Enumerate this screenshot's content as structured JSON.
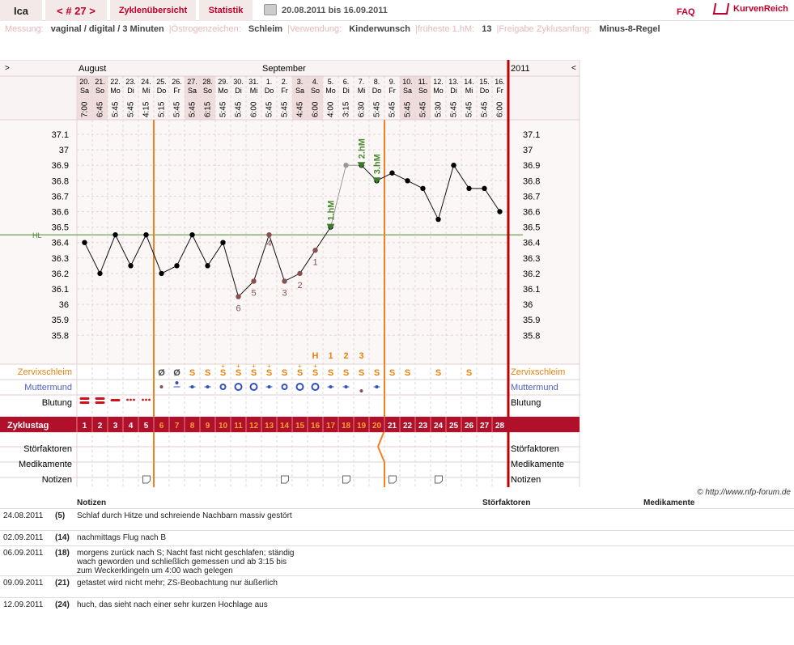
{
  "topbar": {
    "user": "Ica",
    "cycle_nav": "< # 27 >",
    "tab_overview": "Zyklenübersicht",
    "tab_stats": "Statistik",
    "date_range": "20.08.2011 bis 16.09.2011",
    "faq": "FAQ",
    "brand": "KurvenReich"
  },
  "meta": [
    {
      "k": "Messung:",
      "v": "vaginal / digital / 3 Minuten"
    },
    {
      "k": "Östrogenzeichen:",
      "v": "Schleim"
    },
    {
      "k": "Verwendung:",
      "v": "Kinderwunsch"
    },
    {
      "k": "früheste 1.hM:",
      "v": "13"
    },
    {
      "k": "Freigabe Zyklusanfang:",
      "v": "Minus-8-Regel"
    }
  ],
  "chart_data": {
    "type": "line",
    "months": {
      "m1": "August",
      "m2": "September",
      "year": "2011",
      "nav_left": ">",
      "nav_right": "<"
    },
    "dates": [
      "20.",
      "21.",
      "22.",
      "23.",
      "24.",
      "25.",
      "26.",
      "27.",
      "28.",
      "29.",
      "30.",
      "31.",
      "1.",
      "2.",
      "3.",
      "4.",
      "5.",
      "6.",
      "7.",
      "8.",
      "9.",
      "10.",
      "11.",
      "12.",
      "13.",
      "14.",
      "15.",
      "16."
    ],
    "weekdays": [
      "Sa",
      "So",
      "Mo",
      "Di",
      "Mi",
      "Do",
      "Fr",
      "Sa",
      "So",
      "Mo",
      "Di",
      "Mi",
      "Do",
      "Fr",
      "Sa",
      "So",
      "Mo",
      "Di",
      "Mi",
      "Do",
      "Fr",
      "Sa",
      "So",
      "Mo",
      "Di",
      "Mi",
      "Do",
      "Fr"
    ],
    "times": [
      "7:00",
      "6:45",
      "5:45",
      "5:45",
      "4:15",
      "5:15",
      "5:45",
      "5:45",
      "6:15",
      "5:45",
      "5:45",
      "6:00",
      "5:45",
      "5:45",
      "4:45",
      "6:00",
      "4:00",
      "3:15",
      "6:30",
      "5:45",
      "5:45",
      "5:45",
      "5:45",
      "5:30",
      "5:45",
      "5:45",
      "5:45",
      "6:00"
    ],
    "temps": [
      36.4,
      36.2,
      36.45,
      36.25,
      36.45,
      36.2,
      36.25,
      36.45,
      36.25,
      36.4,
      36.05,
      36.15,
      36.45,
      36.15,
      36.2,
      36.35,
      36.5,
      36.9,
      36.9,
      36.8,
      36.85,
      36.8,
      36.75,
      36.55,
      36.9,
      36.75,
      36.75,
      36.6
    ],
    "count_labels": [
      "",
      "",
      "",
      "",
      "",
      "",
      "",
      "",
      "",
      "",
      "6",
      "5",
      "4",
      "3",
      "2",
      "1",
      "",
      "",
      "",
      "",
      "",
      "",
      "",
      "",
      "",
      "",
      "",
      ""
    ],
    "hm_labels": [
      {
        "day": 17,
        "text": "1.hM"
      },
      {
        "day": 19,
        "text": "2.hM"
      },
      {
        "day": 20,
        "text": "3.hM"
      }
    ],
    "hl_label": "HL",
    "hl_value": 36.45,
    "yticks": [
      "37.1",
      "37",
      "36.9",
      "36.8",
      "36.7",
      "36.6",
      "36.5",
      "36.4",
      "36.3",
      "36.2",
      "36.1",
      "36",
      "35.9",
      "35.8"
    ],
    "ylim": [
      35.8,
      37.1
    ],
    "mucus_top": [
      "",
      "",
      "",
      "",
      "",
      "",
      "",
      "",
      "",
      "",
      "",
      "",
      "",
      "",
      "",
      "H",
      "1",
      "2",
      "3",
      "",
      "",
      "",
      "",
      "",
      "",
      "",
      "",
      ""
    ],
    "mucus": [
      "",
      "",
      "",
      "",
      "",
      "Ø",
      "Ø",
      "S",
      "S",
      "S+",
      "S+",
      "S+",
      "S+",
      "S",
      "S+",
      "S+",
      "S",
      "S",
      "S",
      "S",
      "S",
      "S",
      "",
      "S",
      "",
      "S",
      "",
      ""
    ],
    "cervix": [
      "",
      "",
      "",
      "",
      "",
      "small",
      "mid",
      "dot",
      "dot",
      "ring",
      "ringL",
      "ringL",
      "dot",
      "ring",
      "ringL",
      "ringL",
      "dot",
      "dot",
      "low",
      "dot",
      "",
      "",
      "",
      "",
      "",
      "",
      "",
      ""
    ],
    "bleeding": [
      "heavy",
      "heavy",
      "mid",
      "light",
      "light",
      "",
      "",
      "",
      "",
      "",
      "",
      "",
      "",
      "",
      "",
      "",
      "",
      "",
      "",
      "",
      "",
      "",
      "",
      "",
      "",
      "",
      "",
      ""
    ],
    "cycle_days": [
      "1",
      "2",
      "3",
      "4",
      "5",
      "6",
      "7",
      "8",
      "9",
      "10",
      "11",
      "12",
      "13",
      "14",
      "15",
      "16",
      "17",
      "18",
      "19",
      "20",
      "21",
      "22",
      "23",
      "24",
      "25",
      "26",
      "27",
      "28"
    ],
    "notes_marks": [
      5,
      14,
      18,
      21,
      24
    ],
    "row_labels": {
      "mucus": "Zervixschleim",
      "cervix": "Muttermund",
      "bleeding": "Blutung",
      "cycle_day": "Zyklustag",
      "stor": "Störfaktoren",
      "med": "Medikamente",
      "notes": "Notizen"
    }
  },
  "notes": {
    "headers": {
      "notes": "Notizen",
      "stor": "Störfaktoren",
      "med": "Medikamente"
    },
    "copyright": "© http://www.nfp-forum.de",
    "rows": [
      {
        "date": "24.08.2011",
        "day": "(5)",
        "text": "Schlaf durch Hitze und schreiende Nachbarn massiv gestört"
      },
      {
        "date": "02.09.2011",
        "day": "(14)",
        "text": "nachmittags Flug nach B"
      },
      {
        "date": "06.09.2011",
        "day": "(18)",
        "text": "morgens zurück nach S; Nacht fast nicht geschlafen; ständig wach geworden und schließlich gemessen und ab 3:15 bis zum Weckerklingeln um 4:00 wach gelegen"
      },
      {
        "date": "09.09.2011",
        "day": "(21)",
        "text": "getastet wird nicht mehr; ZS-Beobachtung nur äußerlich"
      },
      {
        "date": "12.09.2011",
        "day": "(24)",
        "text": "huch, das sieht nach einer sehr kurzen Hochlage aus"
      }
    ]
  }
}
